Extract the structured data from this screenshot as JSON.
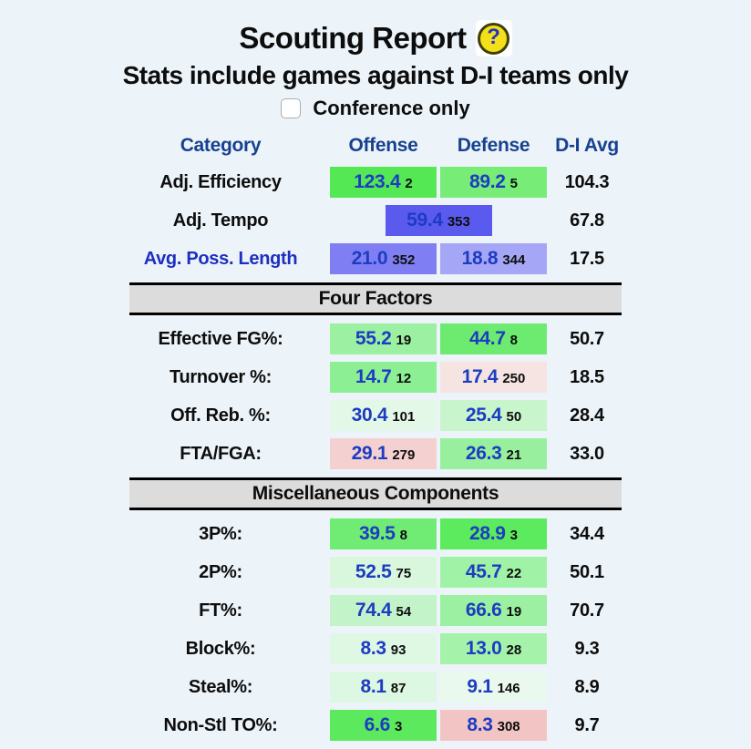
{
  "page": {
    "background": "#edf4f9",
    "title": "Scouting Report",
    "help_glyph": "?",
    "subtitle": "Stats include games against D-I teams only",
    "checkbox": {
      "label": "Conference only",
      "checked": false
    }
  },
  "colors": {
    "header_blue": "#17418f",
    "value_blue": "#1d3cc2",
    "link_blue": "#1d2fc0",
    "section_gray": "#dcdcdc",
    "help_yellow": "#f3e01a"
  },
  "table": {
    "headers": {
      "category": "Category",
      "offense": "Offense",
      "defense": "Defense",
      "avg": "D-I Avg"
    },
    "rows": [
      {
        "type": "stat",
        "label": "Adj. Efficiency",
        "offense": {
          "value": "123.4",
          "rank": "2",
          "bg": "#55e855"
        },
        "defense": {
          "value": "89.2",
          "rank": "5",
          "bg": "#77ec77"
        },
        "avg": "104.3"
      },
      {
        "type": "stat-combined",
        "label": "Adj. Tempo",
        "combined": {
          "value": "59.4",
          "rank": "353",
          "bg": "#5a5aef"
        },
        "avg": "67.8"
      },
      {
        "type": "stat",
        "label": "Avg. Poss. Length",
        "label_link": true,
        "offense": {
          "value": "21.0",
          "rank": "352",
          "bg": "#7f7ff3"
        },
        "defense": {
          "value": "18.8",
          "rank": "344",
          "bg": "#a6a6f6"
        },
        "avg": "17.5"
      },
      {
        "type": "section",
        "label": "Four Factors"
      },
      {
        "type": "stat",
        "label": "Effective FG%:",
        "offense": {
          "value": "55.2",
          "rank": "19",
          "bg": "#9bf0a1"
        },
        "defense": {
          "value": "44.7",
          "rank": "8",
          "bg": "#6ceb70"
        },
        "avg": "50.7"
      },
      {
        "type": "stat",
        "label": "Turnover %:",
        "offense": {
          "value": "14.7",
          "rank": "12",
          "bg": "#8def93"
        },
        "defense": {
          "value": "17.4",
          "rank": "250",
          "bg": "#f5e4e2"
        },
        "avg": "18.5"
      },
      {
        "type": "stat",
        "label": "Off. Reb. %:",
        "offense": {
          "value": "30.4",
          "rank": "101",
          "bg": "#e3f8e7"
        },
        "defense": {
          "value": "25.4",
          "rank": "50",
          "bg": "#c9f5cd"
        },
        "avg": "28.4"
      },
      {
        "type": "stat",
        "label": "FTA/FGA:",
        "offense": {
          "value": "29.1",
          "rank": "279",
          "bg": "#f4d0d0"
        },
        "defense": {
          "value": "26.3",
          "rank": "21",
          "bg": "#98f09e"
        },
        "avg": "33.0"
      },
      {
        "type": "section",
        "label": "Miscellaneous Components"
      },
      {
        "type": "stat",
        "label": "3P%:",
        "offense": {
          "value": "39.5",
          "rank": "8",
          "bg": "#70ec74"
        },
        "defense": {
          "value": "28.9",
          "rank": "3",
          "bg": "#5cea5e"
        },
        "avg": "34.4"
      },
      {
        "type": "stat",
        "label": "2P%:",
        "offense": {
          "value": "52.5",
          "rank": "75",
          "bg": "#d8f7dc"
        },
        "defense": {
          "value": "45.7",
          "rank": "22",
          "bg": "#a0f2a6"
        },
        "avg": "50.1"
      },
      {
        "type": "stat",
        "label": "FT%:",
        "offense": {
          "value": "74.4",
          "rank": "54",
          "bg": "#c3f4c9"
        },
        "defense": {
          "value": "66.6",
          "rank": "19",
          "bg": "#9bf0a1"
        },
        "avg": "70.7"
      },
      {
        "type": "stat",
        "label": "Block%:",
        "offense": {
          "value": "8.3",
          "rank": "93",
          "bg": "#dff8e4"
        },
        "defense": {
          "value": "13.0",
          "rank": "28",
          "bg": "#a5f2ab"
        },
        "avg": "9.3"
      },
      {
        "type": "stat",
        "label": "Steal%:",
        "offense": {
          "value": "8.1",
          "rank": "87",
          "bg": "#ddf8e2"
        },
        "defense": {
          "value": "9.1",
          "rank": "146",
          "bg": "#eaf9ee"
        },
        "avg": "8.9"
      },
      {
        "type": "stat",
        "label": "Non-Stl TO%:",
        "offense": {
          "value": "6.6",
          "rank": "3",
          "bg": "#5ce95e"
        },
        "defense": {
          "value": "8.3",
          "rank": "308",
          "bg": "#f2c4c4"
        },
        "avg": "9.7"
      }
    ]
  }
}
